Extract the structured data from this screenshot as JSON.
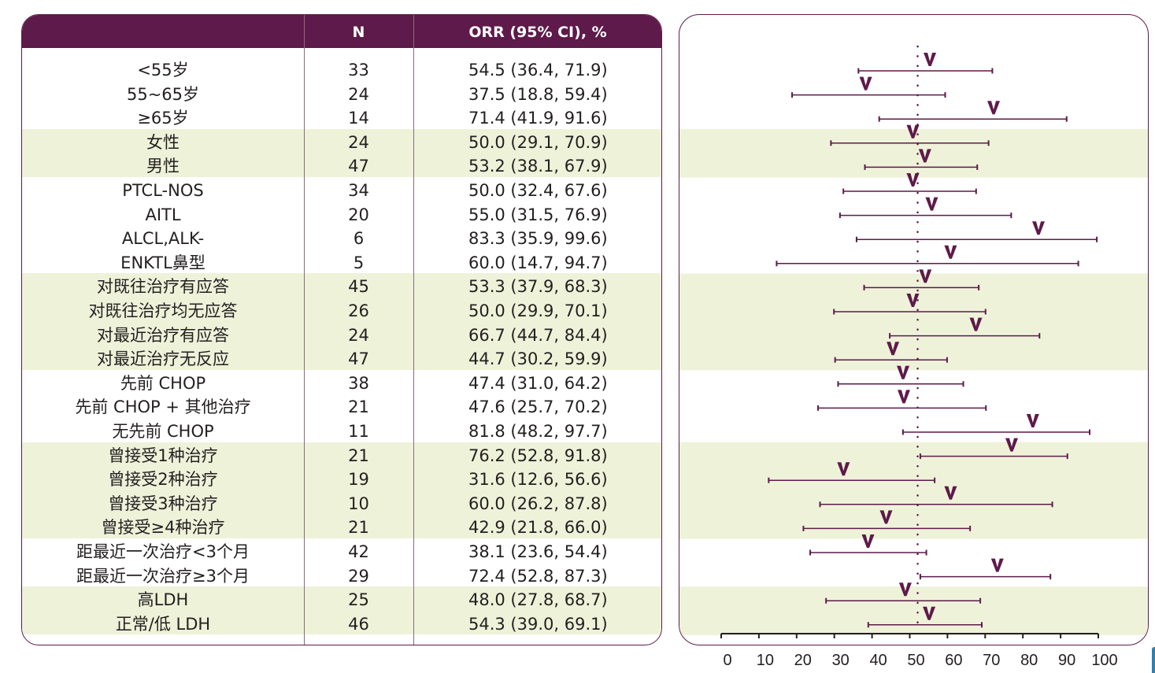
{
  "table": {
    "headers": {
      "subgroup": "",
      "n": "N",
      "orr": "ORR (95% CI), %"
    },
    "rows": [
      {
        "label": "<55岁",
        "n": "33",
        "orr": "54.5 (36.4, 71.9)"
      },
      {
        "label": "55~65岁",
        "n": "24",
        "orr": "37.5 (18.8, 59.4)"
      },
      {
        "label": "≥65岁",
        "n": "14",
        "orr": "71.4 (41.9, 91.6)"
      },
      {
        "label": "女性",
        "n": "24",
        "orr": "50.0 (29.1, 70.9)"
      },
      {
        "label": "男性",
        "n": "47",
        "orr": "53.2 (38.1, 67.9)"
      },
      {
        "label": "PTCL-NOS",
        "n": "34",
        "orr": "50.0 (32.4, 67.6)"
      },
      {
        "label": "AITL",
        "n": "20",
        "orr": "55.0 (31.5, 76.9)"
      },
      {
        "label": "ALCL,ALK-",
        "n": "6",
        "orr": "83.3 (35.9, 99.6)"
      },
      {
        "label": "ENKTL鼻型",
        "n": "5",
        "orr": "60.0 (14.7, 94.7)"
      },
      {
        "label": "对既往治疗有应答",
        "n": "45",
        "orr": "53.3 (37.9, 68.3)"
      },
      {
        "label": "对既往治疗均无应答",
        "n": "26",
        "orr": "50.0 (29.9, 70.1)"
      },
      {
        "label": "对最近治疗有应答",
        "n": "24",
        "orr": "66.7 (44.7, 84.4)"
      },
      {
        "label": "对最近治疗无反应",
        "n": "47",
        "orr": "44.7 (30.2, 59.9)"
      },
      {
        "label": "先前 CHOP",
        "n": "38",
        "orr": "47.4 (31.0, 64.2)"
      },
      {
        "label": "先前 CHOP + 其他治疗",
        "n": "21",
        "orr": "47.6 (25.7, 70.2)"
      },
      {
        "label": "无先前 CHOP",
        "n": "11",
        "orr": "81.8 (48.2, 97.7)"
      },
      {
        "label": "曾接受1种治疗",
        "n": "21",
        "orr": "76.2 (52.8, 91.8)"
      },
      {
        "label": "曾接受2种治疗",
        "n": "19",
        "orr": "31.6 (12.6, 56.6)"
      },
      {
        "label": "曾接受3种治疗",
        "n": "10",
        "orr": "60.0 (26.2, 87.8)"
      },
      {
        "label": "曾接受≥4种治疗",
        "n": "21",
        "orr": "42.9 (21.8, 66.0)"
      },
      {
        "label": "距最近一次治疗<3个月",
        "n": "42",
        "orr": "38.1 (23.6, 54.4)"
      },
      {
        "label": "距最近一次治疗≥3个月",
        "n": "29",
        "orr": "72.4 (52.8, 87.3)"
      },
      {
        "label": "高LDH",
        "n": "25",
        "orr": "48.0 (27.8, 68.7)"
      },
      {
        "label": "正常/低 LDH",
        "n": "46",
        "orr": "54.3 (39.0, 69.1)"
      }
    ],
    "band_groups": [
      [
        3,
        4
      ],
      [
        9,
        10,
        11,
        12
      ],
      [
        16,
        17,
        18,
        19
      ],
      [
        22,
        23
      ]
    ]
  },
  "colors": {
    "header_bg": "#5e1a4a",
    "marker": "#5e1a4a",
    "band": "#eef2d9",
    "border": "#5e1a4a"
  },
  "chart_data": {
    "type": "forest",
    "title": "",
    "xlabel": "",
    "xlim": [
      0,
      100
    ],
    "xticks": [
      0,
      10,
      20,
      30,
      40,
      50,
      60,
      70,
      80,
      90,
      100
    ],
    "reference_line": 52.1,
    "reference_style": "dotted",
    "marker": "V",
    "categories": [
      "<55岁",
      "55~65岁",
      "≥65岁",
      "女性",
      "男性",
      "PTCL-NOS",
      "AITL",
      "ALCL,ALK-",
      "ENKTL鼻型",
      "对既往治疗有应答",
      "对既往治疗均无应答",
      "对最近治疗有应答",
      "对最近治疗无反应",
      "先前 CHOP",
      "先前 CHOP + 其他治疗",
      "无先前 CHOP",
      "曾接受1种治疗",
      "曾接受2种治疗",
      "曾接受3种治疗",
      "曾接受≥4种治疗",
      "距最近一次治疗<3个月",
      "距最近一次治疗≥3个月",
      "高LDH",
      "正常/低 LDH"
    ],
    "estimate": [
      54.5,
      37.5,
      71.4,
      50.0,
      53.2,
      50.0,
      55.0,
      83.3,
      60.0,
      53.3,
      50.0,
      66.7,
      44.7,
      47.4,
      47.6,
      81.8,
      76.2,
      31.6,
      60.0,
      42.9,
      38.1,
      72.4,
      48.0,
      54.3
    ],
    "ci_low": [
      36.4,
      18.8,
      41.9,
      29.1,
      38.1,
      32.4,
      31.5,
      35.9,
      14.7,
      37.9,
      29.9,
      44.7,
      30.2,
      31.0,
      25.7,
      48.2,
      52.8,
      12.6,
      26.2,
      21.8,
      23.6,
      52.8,
      27.8,
      39.0
    ],
    "ci_high": [
      71.9,
      59.4,
      91.6,
      70.9,
      67.9,
      67.6,
      76.9,
      99.6,
      94.7,
      68.3,
      70.1,
      84.4,
      59.9,
      64.2,
      70.2,
      97.7,
      91.8,
      56.6,
      87.8,
      66.0,
      54.4,
      87.3,
      68.7,
      69.1
    ],
    "n": [
      33,
      24,
      14,
      24,
      47,
      34,
      20,
      6,
      5,
      45,
      26,
      24,
      47,
      38,
      21,
      11,
      21,
      19,
      10,
      21,
      42,
      29,
      25,
      46
    ]
  }
}
